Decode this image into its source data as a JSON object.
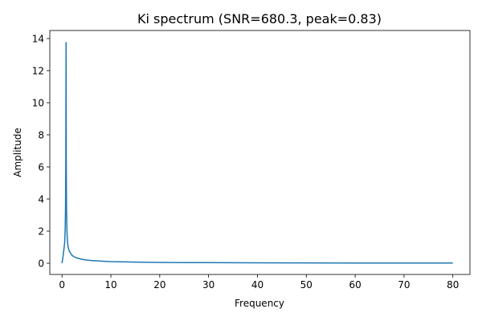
{
  "chart_data": {
    "type": "line",
    "title": "Ki spectrum (SNR=680.3, peak=0.83)",
    "xlabel": "Frequency",
    "ylabel": "Amplitude",
    "xlim": [
      -2.5,
      83.5
    ],
    "ylim": [
      -0.7,
      14.5
    ],
    "xticks": [
      0,
      10,
      20,
      30,
      40,
      50,
      60,
      70,
      80
    ],
    "yticks": [
      0,
      2,
      4,
      6,
      8,
      10,
      12,
      14
    ],
    "grid": false,
    "series": [
      {
        "color": "#1f77b4",
        "x": [
          0.0,
          0.2,
          0.4,
          0.55,
          0.65,
          0.72,
          0.77,
          0.8,
          0.82,
          0.83,
          0.84,
          0.87,
          0.92,
          1.0,
          1.1,
          1.25,
          1.5,
          2.0,
          2.5,
          3.0,
          4.0,
          5.0,
          6.0,
          8.0,
          10.0,
          12.0,
          15.0,
          20.0,
          25.0,
          30.0,
          40.0,
          50.0,
          60.0,
          70.0,
          80.0
        ],
        "values": [
          0.0,
          0.4,
          0.9,
          1.3,
          2.2,
          3.5,
          6.0,
          9.5,
          12.5,
          13.75,
          12.0,
          6.5,
          3.5,
          2.1,
          1.4,
          1.0,
          0.75,
          0.5,
          0.4,
          0.33,
          0.25,
          0.2,
          0.17,
          0.13,
          0.1,
          0.085,
          0.07,
          0.05,
          0.04,
          0.035,
          0.025,
          0.02,
          0.015,
          0.012,
          0.01
        ]
      }
    ]
  }
}
